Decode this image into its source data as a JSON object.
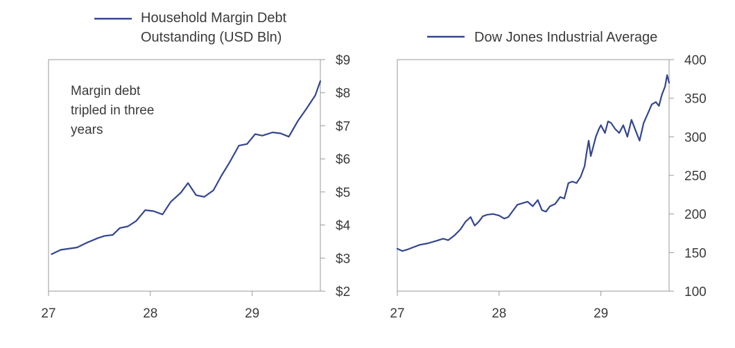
{
  "colors": {
    "series": "#33458e",
    "text": "#3a3a3a",
    "axis": "#9a9a9a"
  },
  "chart_data": [
    {
      "type": "line",
      "legend": [
        "Household Margin Debt",
        "Outstanding (USD Bln)"
      ],
      "legend_position": "top",
      "annotation": [
        "Margin debt",
        "tripled in three",
        "years"
      ],
      "x_ticks": [
        {
          "value": 1927,
          "label": "27"
        },
        {
          "value": 1928,
          "label": "28"
        },
        {
          "value": 1929,
          "label": "29"
        }
      ],
      "y_ticks": [
        {
          "value": 2,
          "label": "$2"
        },
        {
          "value": 3,
          "label": "$3"
        },
        {
          "value": 4,
          "label": "$4"
        },
        {
          "value": 5,
          "label": "$5"
        },
        {
          "value": 6,
          "label": "$6"
        },
        {
          "value": 7,
          "label": "$7"
        },
        {
          "value": 8,
          "label": "$8"
        },
        {
          "value": 9,
          "label": "$9"
        }
      ],
      "xlim": [
        1927,
        1929.67
      ],
      "ylim": [
        2,
        9
      ],
      "y_axis_side": "right",
      "grid": false,
      "series": [
        {
          "x": [
            1927.03,
            1927.12,
            1927.28,
            1927.38,
            1927.48,
            1927.55,
            1927.63,
            1927.7,
            1927.78,
            1927.86,
            1927.95,
            1928.03,
            1928.12,
            1928.2,
            1928.3,
            1928.37,
            1928.45,
            1928.53,
            1928.62,
            1928.7,
            1928.78,
            1928.87,
            1928.95,
            1929.03,
            1929.1,
            1929.2,
            1929.28,
            1929.36,
            1929.45,
            1929.53,
            1929.62,
            1929.67
          ],
          "y": [
            3.12,
            3.25,
            3.32,
            3.47,
            3.6,
            3.67,
            3.7,
            3.91,
            3.96,
            4.12,
            4.45,
            4.42,
            4.32,
            4.7,
            4.98,
            5.27,
            4.9,
            4.85,
            5.05,
            5.5,
            5.9,
            6.4,
            6.45,
            6.75,
            6.7,
            6.8,
            6.77,
            6.67,
            7.15,
            7.5,
            7.92,
            8.35
          ]
        }
      ]
    },
    {
      "type": "line",
      "legend": [
        "Dow Jones Industrial Average"
      ],
      "legend_position": "top",
      "x_ticks": [
        {
          "value": 1927,
          "label": "27"
        },
        {
          "value": 1928,
          "label": "28"
        },
        {
          "value": 1929,
          "label": "29"
        }
      ],
      "y_ticks": [
        {
          "value": 100,
          "label": "100"
        },
        {
          "value": 150,
          "label": "150"
        },
        {
          "value": 200,
          "label": "200"
        },
        {
          "value": 250,
          "label": "250"
        },
        {
          "value": 300,
          "label": "300"
        },
        {
          "value": 350,
          "label": "350"
        },
        {
          "value": 400,
          "label": "400"
        }
      ],
      "xlim": [
        1927,
        1929.67
      ],
      "ylim": [
        100,
        400
      ],
      "y_axis_side": "right",
      "grid": false,
      "series": [
        {
          "x": [
            1927.0,
            1927.05,
            1927.1,
            1927.16,
            1927.22,
            1927.3,
            1927.38,
            1927.45,
            1927.5,
            1927.56,
            1927.62,
            1927.67,
            1927.72,
            1927.76,
            1927.8,
            1927.84,
            1927.88,
            1927.94,
            1928.0,
            1928.05,
            1928.09,
            1928.14,
            1928.18,
            1928.23,
            1928.28,
            1928.33,
            1928.38,
            1928.42,
            1928.46,
            1928.5,
            1928.55,
            1928.6,
            1928.64,
            1928.68,
            1928.72,
            1928.76,
            1928.8,
            1928.84,
            1928.86,
            1928.88,
            1928.9,
            1928.93,
            1928.95,
            1928.98,
            1929.0,
            1929.04,
            1929.07,
            1929.1,
            1929.14,
            1929.18,
            1929.22,
            1929.26,
            1929.3,
            1929.35,
            1929.38,
            1929.42,
            1929.46,
            1929.5,
            1929.54,
            1929.57,
            1929.6,
            1929.63,
            1929.65,
            1929.67
          ],
          "y": [
            155,
            152,
            154,
            157,
            160,
            162,
            165,
            168,
            166,
            172,
            180,
            190,
            196,
            185,
            190,
            197,
            199,
            200,
            198,
            194,
            196,
            205,
            212,
            214,
            216,
            210,
            218,
            205,
            203,
            210,
            213,
            222,
            220,
            240,
            242,
            240,
            248,
            262,
            280,
            295,
            275,
            290,
            300,
            310,
            315,
            305,
            320,
            318,
            310,
            305,
            315,
            300,
            322,
            305,
            295,
            318,
            330,
            342,
            345,
            340,
            355,
            365,
            380,
            370
          ]
        }
      ]
    }
  ]
}
